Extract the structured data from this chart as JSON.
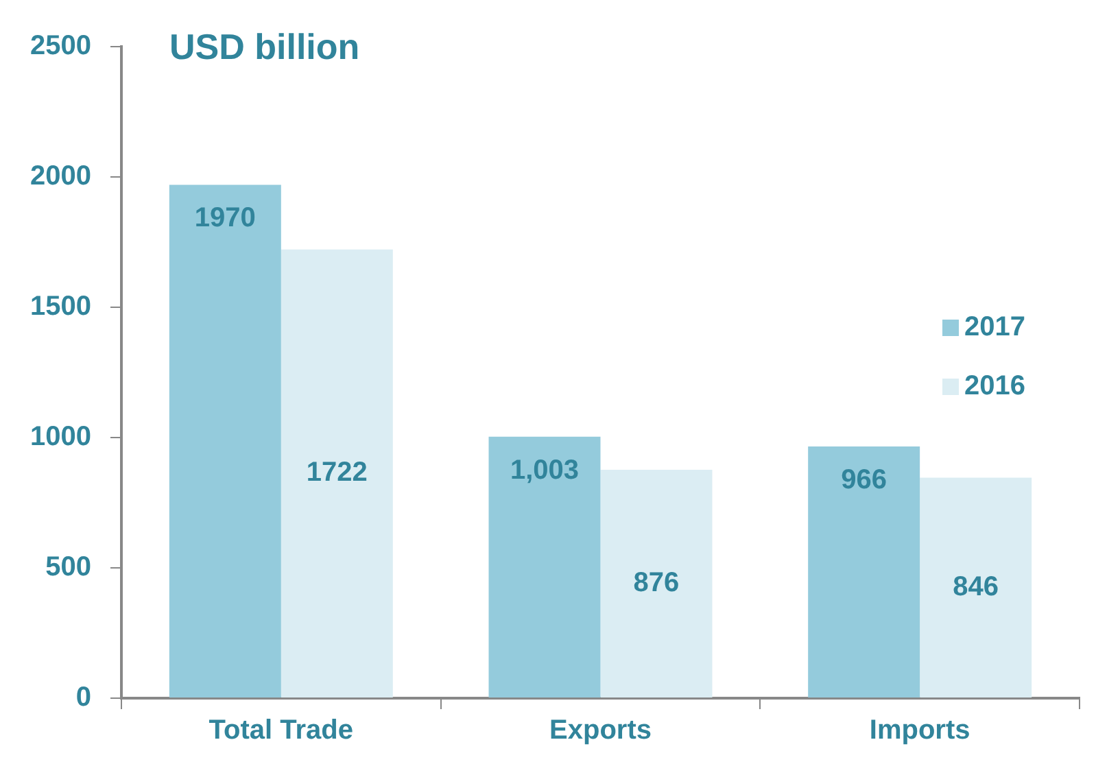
{
  "chart_data": {
    "type": "bar",
    "title": "USD billion",
    "categories": [
      "Total Trade",
      "Exports",
      "Imports"
    ],
    "series": [
      {
        "name": "2017",
        "color": "#94cbdc",
        "values": [
          1970,
          1003,
          966
        ],
        "value_labels": [
          "1970",
          "1,003",
          "966"
        ]
      },
      {
        "name": "2016",
        "color": "#dbedf3",
        "values": [
          1722,
          876,
          846
        ],
        "value_labels": [
          "1722",
          "876",
          "846"
        ]
      }
    ],
    "ylim": [
      0,
      2500
    ],
    "yticks": [
      0,
      500,
      1000,
      1500,
      2000,
      2500
    ],
    "grid": false,
    "legend": "right"
  }
}
